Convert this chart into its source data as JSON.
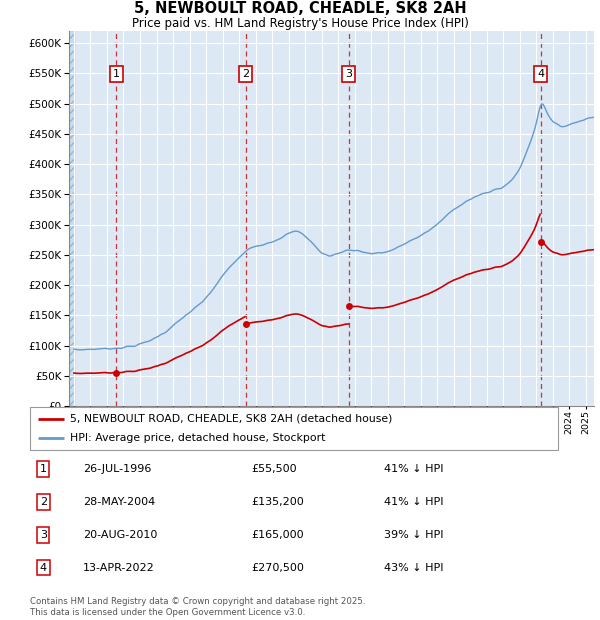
{
  "title": "5, NEWBOULT ROAD, CHEADLE, SK8 2AH",
  "subtitle": "Price paid vs. HM Land Registry's House Price Index (HPI)",
  "ylim": [
    0,
    620000
  ],
  "yticks": [
    0,
    50000,
    100000,
    150000,
    200000,
    250000,
    300000,
    350000,
    400000,
    450000,
    500000,
    550000,
    600000
  ],
  "xlim_start": 1993.7,
  "xlim_end": 2025.5,
  "bg_color": "#dce9f5",
  "grid_color": "#ffffff",
  "sale_dates": [
    1996.57,
    2004.41,
    2010.64,
    2022.28
  ],
  "sale_prices": [
    55500,
    135200,
    165000,
    270500
  ],
  "sale_labels": [
    "1",
    "2",
    "3",
    "4"
  ],
  "legend_label_red": "5, NEWBOULT ROAD, CHEADLE, SK8 2AH (detached house)",
  "legend_label_blue": "HPI: Average price, detached house, Stockport",
  "table_rows": [
    {
      "num": "1",
      "date": "26-JUL-1996",
      "price": "£55,500",
      "pct": "41% ↓ HPI"
    },
    {
      "num": "2",
      "date": "28-MAY-2004",
      "price": "£135,200",
      "pct": "41% ↓ HPI"
    },
    {
      "num": "3",
      "date": "20-AUG-2010",
      "price": "£165,000",
      "pct": "39% ↓ HPI"
    },
    {
      "num": "4",
      "date": "13-APR-2022",
      "price": "£270,500",
      "pct": "43% ↓ HPI"
    }
  ],
  "footer": "Contains HM Land Registry data © Crown copyright and database right 2025.\nThis data is licensed under the Open Government Licence v3.0.",
  "red_line_color": "#cc0000",
  "blue_line_color": "#6699cc",
  "dashed_line_color": "#cc3333",
  "hpi_control_points": [
    [
      1994.0,
      93000
    ],
    [
      1994.5,
      93500
    ],
    [
      1995.0,
      94000
    ],
    [
      1995.5,
      94500
    ],
    [
      1996.0,
      95000
    ],
    [
      1996.5,
      95800
    ],
    [
      1997.0,
      97000
    ],
    [
      1997.5,
      99000
    ],
    [
      1998.0,
      102000
    ],
    [
      1998.5,
      107000
    ],
    [
      1999.0,
      114000
    ],
    [
      1999.5,
      122000
    ],
    [
      2000.0,
      132000
    ],
    [
      2000.5,
      144000
    ],
    [
      2001.0,
      155000
    ],
    [
      2001.5,
      165000
    ],
    [
      2002.0,
      178000
    ],
    [
      2002.5,
      196000
    ],
    [
      2003.0,
      215000
    ],
    [
      2003.5,
      232000
    ],
    [
      2004.0,
      245000
    ],
    [
      2004.5,
      258000
    ],
    [
      2005.0,
      265000
    ],
    [
      2005.5,
      268000
    ],
    [
      2006.0,
      272000
    ],
    [
      2006.5,
      278000
    ],
    [
      2007.0,
      285000
    ],
    [
      2007.5,
      290000
    ],
    [
      2008.0,
      282000
    ],
    [
      2008.5,
      268000
    ],
    [
      2009.0,
      252000
    ],
    [
      2009.5,
      248000
    ],
    [
      2010.0,
      252000
    ],
    [
      2010.5,
      258000
    ],
    [
      2011.0,
      258000
    ],
    [
      2011.5,
      255000
    ],
    [
      2012.0,
      252000
    ],
    [
      2012.5,
      253000
    ],
    [
      2013.0,
      255000
    ],
    [
      2013.5,
      260000
    ],
    [
      2014.0,
      268000
    ],
    [
      2014.5,
      275000
    ],
    [
      2015.0,
      282000
    ],
    [
      2015.5,
      290000
    ],
    [
      2016.0,
      300000
    ],
    [
      2016.5,
      313000
    ],
    [
      2017.0,
      325000
    ],
    [
      2017.5,
      335000
    ],
    [
      2018.0,
      342000
    ],
    [
      2018.5,
      348000
    ],
    [
      2019.0,
      352000
    ],
    [
      2019.5,
      358000
    ],
    [
      2020.0,
      362000
    ],
    [
      2020.5,
      372000
    ],
    [
      2021.0,
      392000
    ],
    [
      2021.5,
      425000
    ],
    [
      2022.0,
      465000
    ],
    [
      2022.3,
      510000
    ],
    [
      2022.5,
      495000
    ],
    [
      2022.8,
      478000
    ],
    [
      2023.0,
      468000
    ],
    [
      2023.5,
      462000
    ],
    [
      2024.0,
      465000
    ],
    [
      2024.5,
      470000
    ],
    [
      2025.0,
      475000
    ],
    [
      2025.5,
      478000
    ]
  ]
}
